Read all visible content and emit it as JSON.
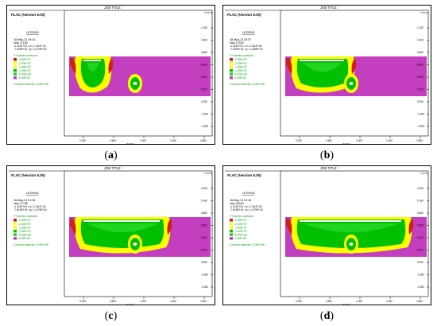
{
  "colors": {
    "magenta": "#c43fbf",
    "yellow": "#ffff00",
    "green": "#00c000",
    "green_light": "#22d422",
    "red": "#d11d1d",
    "frame": "#000000"
  },
  "panels": [
    {
      "id": "a",
      "label_open": "(",
      "label_letter": "a",
      "label_close": ")",
      "job_title": "JOB TITLE :",
      "version": "FLAC (Version 5.00)",
      "legend_title": "LEGEND",
      "date": "18-May-13  19:14",
      "step": "step   17160",
      "range1": "-1.111E+01 <x<  2.111E+02",
      "range2": "-7.529E+01 <y<  1.470E+02",
      "contours_title": "YY-stress contours",
      "legend_items": [
        "-2.50E+07",
        "-2.00E+07",
        "-1.50E+07",
        "-1.00E+07",
        "-5.00E+06",
        "0.00E+00"
      ],
      "interval": "Contour interval=  5.00E+06",
      "yticks": [
        "1.200",
        "1.000",
        "0.800",
        "0.600",
        "0.400",
        "0.200",
        "0.000",
        "-0.200",
        "-0.400"
      ],
      "xticks": [
        "0.200",
        "0.600",
        "1.000",
        "1.400",
        "1.800"
      ],
      "xunit": "(*10^2)",
      "yunit": "(*10^2)"
    },
    {
      "id": "b",
      "label_open": "(",
      "label_letter": "b",
      "label_close": ")",
      "job_title": "JOB TITLE :",
      "version": "FLAC (Version 5.00)",
      "legend_title": "LEGEND",
      "date": "18-May-13  20:07",
      "step": "step   17520",
      "range1": "-1.111E+01 <x<  2.111E+02",
      "range2": "-7.532E+01 <y<  1.469E+02",
      "contours_title": "YY-stress contours",
      "legend_items": [
        "-2.50E+07",
        "-2.00E+07",
        "-1.50E+07",
        "-1.00E+07",
        "-5.00E+06",
        "0.00E+00"
      ],
      "interval": "Contour interval=  5.00E+06",
      "yticks": [
        "1.200",
        "1.000",
        "0.800",
        "0.600",
        "0.400",
        "0.200",
        "0.000",
        "-0.200",
        "-0.400"
      ],
      "xticks": [
        "0.200",
        "0.600",
        "1.000",
        "1.400",
        "1.800"
      ],
      "xunit": "(*10^2)",
      "yunit": "(*10^2)"
    },
    {
      "id": "c",
      "label_open": "(",
      "label_letter": "c",
      "label_close": ")",
      "job_title": "JOB TITLE :",
      "version": "FLAC (Version 5.00)",
      "legend_title": "LEGEND",
      "date": "18-May-13  21:18",
      "step": "step   17755",
      "range1": "-1.111E+01 <x<  2.111E+02",
      "range2": "-7.519E+01 <y<  1.470E+02",
      "contours_title": "YY-stress contours",
      "legend_items": [
        "-2.50E+07",
        "-2.00E+07",
        "-1.50E+07",
        "-1.00E+07",
        "-5.00E+06",
        "0.00E+00"
      ],
      "interval": "Contour interval=  5.00E+06",
      "yticks": [
        "1.200",
        "1.000",
        "0.800",
        "0.600",
        "0.400",
        "0.200",
        "0.000",
        "-0.200",
        "-0.400"
      ],
      "xticks": [
        "0.200",
        "0.600",
        "1.000",
        "1.400",
        "1.800"
      ],
      "xunit": "(*10^2)",
      "yunit": "(*10^2)"
    },
    {
      "id": "d",
      "label_open": "(",
      "label_letter": "d",
      "label_close": ")",
      "job_title": "JOB TITLE :",
      "version": "FLAC (Version 5.00)",
      "legend_title": "LEGEND",
      "date": "18-May-13  22:18",
      "step": "step   20040",
      "range1": "-1.111E+01 <x<  2.111E+02",
      "range2": "-7.518E+01 <y<  1.470E+02",
      "contours_title": "YY-stress contours",
      "legend_items": [
        "-2.50E+07",
        "-2.00E+07",
        "-1.50E+07",
        "-1.00E+07",
        "-5.00E+06",
        "0.00E+00"
      ],
      "interval": "Contour interval=  5.00E+06",
      "yticks": [
        "1.200",
        "1.000",
        "0.800",
        "0.600",
        "0.400",
        "0.200",
        "0.000",
        "-0.200",
        "-0.400"
      ],
      "xticks": [
        "0.200",
        "0.600",
        "1.000",
        "1.400",
        "1.800"
      ],
      "xunit": "(*10^2)",
      "yunit": "(*10^2)"
    }
  ]
}
